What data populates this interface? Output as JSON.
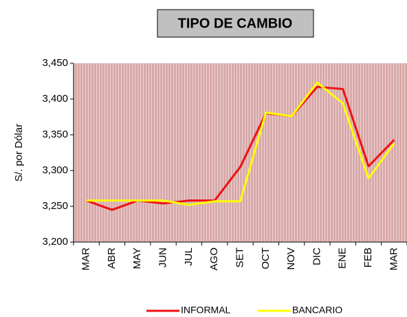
{
  "chart_data": {
    "type": "line",
    "title": "TIPO DE CAMBIO",
    "ylabel": "S/. por Dólar",
    "categories": [
      "MAR",
      "ABR",
      "MAY",
      "JUN",
      "JUL",
      "AGO",
      "SET",
      "OCT",
      "NOV",
      "DIC",
      "ENE",
      "FEB",
      "MAR"
    ],
    "series": [
      {
        "name": "INFORMAL",
        "color": "#ee1111",
        "values": [
          3258,
          3245,
          3258,
          3254,
          3258,
          3258,
          3305,
          3380,
          3376,
          3417,
          3414,
          3306,
          3343
        ]
      },
      {
        "name": "BANCARIO",
        "color": "#ffff00",
        "values": [
          3258,
          3258,
          3258,
          3258,
          3252,
          3257,
          3257,
          3381,
          3376,
          3423,
          3394,
          3289,
          3338
        ]
      }
    ],
    "ylim": [
      3200,
      3450
    ],
    "yticks": [
      {
        "value": 3200,
        "label": "3,200"
      },
      {
        "value": 3250,
        "label": "3,250"
      },
      {
        "value": 3300,
        "label": "3,300"
      },
      {
        "value": 3350,
        "label": "3,350"
      },
      {
        "value": 3400,
        "label": "3,400"
      },
      {
        "value": 3450,
        "label": "3,450"
      }
    ],
    "legend": "bottom"
  }
}
